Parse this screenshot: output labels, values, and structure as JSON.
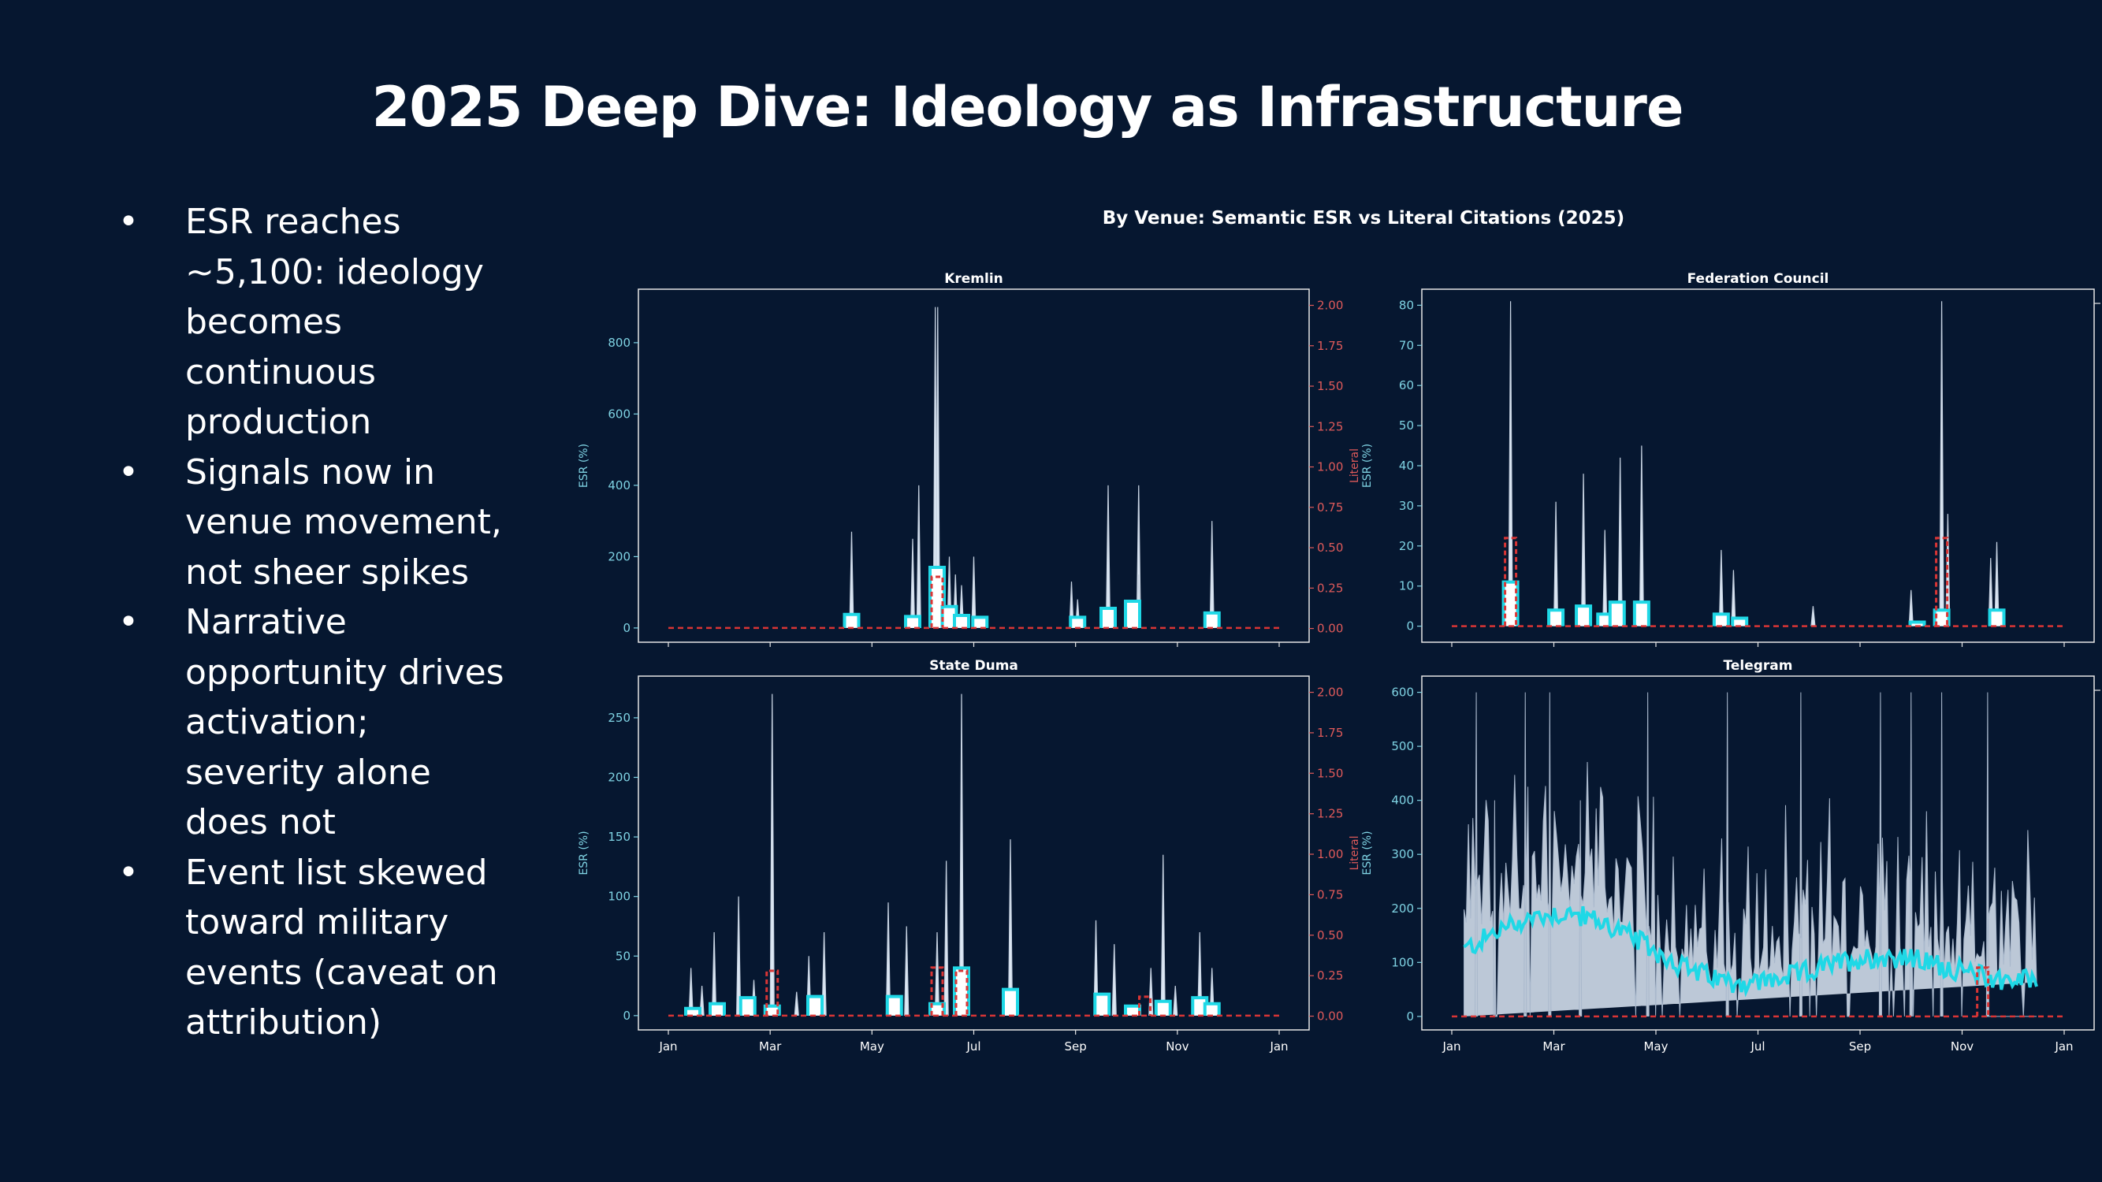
{
  "slide": {
    "title": "2025 Deep Dive: Ideology as Infrastructure",
    "bullets": [
      "ESR reaches ~5,100: ideology becomes continuous production",
      "Signals now in venue movement, not sheer spikes",
      "Narrative opportunity drives activation; severity alone does not",
      "Event list skewed toward military events (caveat on attribution)"
    ]
  },
  "colors": {
    "background": "#061730",
    "esr_fill": "#dde8f4",
    "esr_smooth": "#1fd8e6",
    "literal": "#d93535",
    "left_axis": "#7fd3e3",
    "right_axis": "#e05a5a"
  },
  "chart_data": {
    "title": "By Venue: Semantic ESR vs Literal Citations (2025)",
    "type": "line",
    "x_tick_labels": [
      "Jan",
      "Mar",
      "May",
      "Jul",
      "Sep",
      "Nov",
      "Jan"
    ],
    "xlim": [
      "2025-01-01",
      "2026-01-01"
    ],
    "panels": [
      {
        "title": "Kremlin",
        "ylabel": "ESR (%)",
        "ylim": [
          -40,
          950
        ],
        "yticks": [
          0,
          200,
          400,
          600,
          800
        ],
        "right_ylabel": "Literal",
        "right_ylim": [
          -0.085,
          2.1
        ],
        "right_yticks": [
          "0.00",
          "0.25",
          "0.50",
          "0.75",
          "1.00",
          "1.25",
          "1.50",
          "1.75",
          "2.00"
        ],
        "esr_spikes": [
          [
            0.3,
            270
          ],
          [
            0.4,
            250
          ],
          [
            0.41,
            400
          ],
          [
            0.437,
            900
          ],
          [
            0.441,
            900
          ],
          [
            0.45,
            130
          ],
          [
            0.46,
            200
          ],
          [
            0.47,
            150
          ],
          [
            0.48,
            120
          ],
          [
            0.5,
            200
          ],
          [
            0.66,
            130
          ],
          [
            0.67,
            80
          ],
          [
            0.72,
            400
          ],
          [
            0.77,
            400
          ],
          [
            0.77,
            150
          ],
          [
            0.89,
            300
          ]
        ],
        "esr_smooth": [
          [
            0.3,
            38
          ],
          [
            0.4,
            32
          ],
          [
            0.44,
            170
          ],
          [
            0.46,
            60
          ],
          [
            0.48,
            35
          ],
          [
            0.51,
            30
          ],
          [
            0.67,
            30
          ],
          [
            0.72,
            55
          ],
          [
            0.76,
            75
          ],
          [
            0.89,
            42
          ]
        ],
        "literal_spikes": [
          [
            0.44,
            0.32
          ]
        ]
      },
      {
        "title": "Federation Council",
        "ylabel": "ESR (%)",
        "ylim": [
          -4,
          84
        ],
        "yticks": [
          0,
          10,
          20,
          30,
          40,
          50,
          60,
          70,
          80
        ],
        "right_ylabel": "",
        "right_ylim": null,
        "right_yticks": [],
        "esr_spikes": [
          [
            0.096,
            81
          ],
          [
            0.17,
            31
          ],
          [
            0.215,
            38
          ],
          [
            0.25,
            24
          ],
          [
            0.275,
            42
          ],
          [
            0.31,
            45
          ],
          [
            0.44,
            19
          ],
          [
            0.46,
            14
          ],
          [
            0.59,
            5
          ],
          [
            0.75,
            9
          ],
          [
            0.8,
            81
          ],
          [
            0.81,
            28
          ],
          [
            0.88,
            17
          ],
          [
            0.89,
            21
          ]
        ],
        "esr_smooth": [
          [
            0.096,
            11
          ],
          [
            0.17,
            4
          ],
          [
            0.215,
            5
          ],
          [
            0.25,
            3
          ],
          [
            0.27,
            6
          ],
          [
            0.31,
            6
          ],
          [
            0.44,
            3
          ],
          [
            0.47,
            2
          ],
          [
            0.76,
            1
          ],
          [
            0.8,
            4
          ],
          [
            0.89,
            4
          ]
        ],
        "literal_spikes": [
          [
            0.096,
            0.56
          ],
          [
            0.8,
            0.56
          ]
        ]
      },
      {
        "title": "State Duma",
        "ylabel": "ESR (%)",
        "ylim": [
          -12,
          285
        ],
        "yticks": [
          0,
          50,
          100,
          150,
          200,
          250
        ],
        "right_ylabel": "Literal",
        "right_ylim": [
          -0.085,
          2.1
        ],
        "right_yticks": [
          "0.00",
          "0.25",
          "0.50",
          "0.75",
          "1.00",
          "1.25",
          "1.50",
          "1.75",
          "2.00"
        ],
        "esr_spikes": [
          [
            0.037,
            40
          ],
          [
            0.055,
            25
          ],
          [
            0.075,
            70
          ],
          [
            0.115,
            100
          ],
          [
            0.14,
            30
          ],
          [
            0.17,
            270
          ],
          [
            0.21,
            20
          ],
          [
            0.23,
            50
          ],
          [
            0.255,
            70
          ],
          [
            0.36,
            95
          ],
          [
            0.39,
            75
          ],
          [
            0.44,
            70
          ],
          [
            0.455,
            130
          ],
          [
            0.48,
            270
          ],
          [
            0.56,
            148
          ],
          [
            0.7,
            80
          ],
          [
            0.73,
            60
          ],
          [
            0.79,
            40
          ],
          [
            0.81,
            135
          ],
          [
            0.83,
            25
          ],
          [
            0.87,
            70
          ],
          [
            0.89,
            40
          ]
        ],
        "esr_smooth": [
          [
            0.04,
            6
          ],
          [
            0.08,
            10
          ],
          [
            0.13,
            15
          ],
          [
            0.17,
            8
          ],
          [
            0.24,
            16
          ],
          [
            0.37,
            16
          ],
          [
            0.44,
            10
          ],
          [
            0.48,
            40
          ],
          [
            0.56,
            22
          ],
          [
            0.71,
            18
          ],
          [
            0.76,
            8
          ],
          [
            0.81,
            12
          ],
          [
            0.87,
            15
          ],
          [
            0.89,
            10
          ]
        ],
        "literal_spikes": [
          [
            0.17,
            0.28
          ],
          [
            0.44,
            0.3
          ],
          [
            0.48,
            0.28
          ],
          [
            0.78,
            0.12
          ]
        ]
      },
      {
        "title": "Telegram",
        "ylabel": "ESR (%)",
        "ylim": [
          -25,
          630
        ],
        "yticks": [
          0,
          100,
          200,
          300,
          400,
          500,
          600
        ],
        "right_ylabel": "",
        "right_ylim": null,
        "right_yticks": [],
        "esr_range": [
          0.02,
          0.955
        ],
        "esr_peak_labels": [
          [
            0.04,
            600
          ],
          [
            0.07,
            400
          ],
          [
            0.12,
            600
          ],
          [
            0.16,
            600
          ],
          [
            0.21,
            400
          ],
          [
            0.32,
            600
          ],
          [
            0.45,
            600
          ],
          [
            0.57,
            600
          ],
          [
            0.7,
            600
          ],
          [
            0.75,
            600
          ],
          [
            0.8,
            600
          ],
          [
            0.875,
            600
          ]
        ],
        "literal_spikes": [
          [
            0.867,
            0.3
          ]
        ]
      }
    ]
  }
}
